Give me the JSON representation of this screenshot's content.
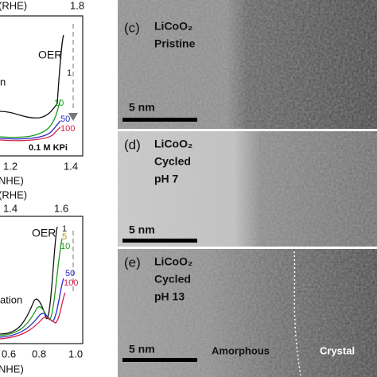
{
  "left_top": {
    "top_axis_label": "(RHE)",
    "top_tick": "1.8",
    "label_oer": "OER",
    "label_partial": "n",
    "curve_labels": [
      "1",
      "10",
      "50",
      "100"
    ],
    "electrolyte": "0.1 M KPi",
    "x_ticks": [
      "1.2",
      "1.4"
    ],
    "x_label": "NHE)"
  },
  "left_bottom": {
    "top_axis_label": "(RHE)",
    "top_ticks": [
      "1.4",
      "1.6"
    ],
    "label_oer": "OER",
    "label_partial": "ation",
    "curve_labels": [
      "1",
      "5",
      "10",
      "50",
      "100"
    ],
    "x_ticks": [
      "0.6",
      "0.8",
      "1.0"
    ],
    "x_label": "NHE)"
  },
  "panels": [
    {
      "tag": "(c)",
      "material": "LiCoO₂",
      "lines": [
        "Pristine"
      ],
      "scale": "5 nm"
    },
    {
      "tag": "(d)",
      "material": "LiCoO₂",
      "lines": [
        "Cycled",
        "pH 7"
      ],
      "scale": "5 nm"
    },
    {
      "tag": "(e)",
      "material": "LiCoO₂",
      "lines": [
        "Cycled",
        "pH 13"
      ],
      "scale": "5 nm",
      "regions": [
        "Amorphous",
        "Crystal"
      ]
    }
  ]
}
